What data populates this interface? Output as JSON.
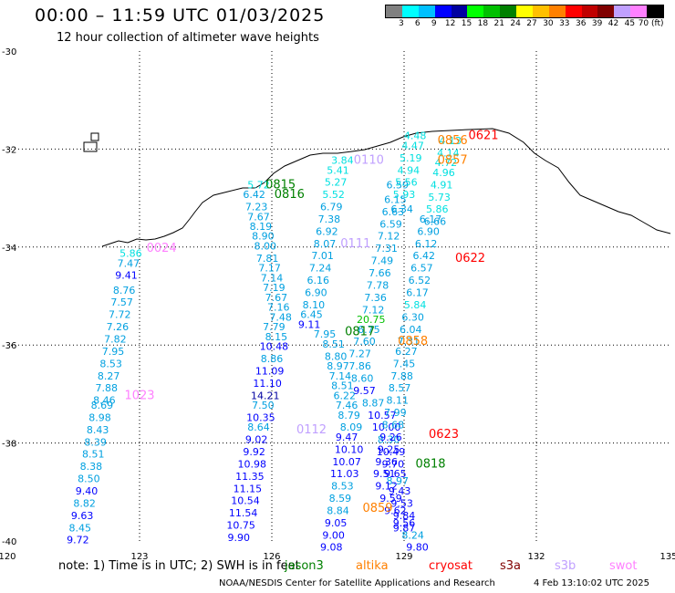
{
  "header": {
    "title": "00:00 – 11:59 UTC 01/03/2025",
    "subtitle": "12 hour collection of altimeter wave heights"
  },
  "legend": {
    "colors": [
      "#808080",
      "#00ffff",
      "#00c0ff",
      "#0000ff",
      "#0000a0",
      "#00ff00",
      "#00c000",
      "#008000",
      "#ffff00",
      "#ffc000",
      "#ff8000",
      "#ff0000",
      "#c00000",
      "#800000",
      "#c0a0ff",
      "#ff80ff",
      "#000000"
    ],
    "labels": [
      "3",
      "6",
      "9",
      "12",
      "15",
      "18",
      "21",
      "24",
      "27",
      "30",
      "33",
      "36",
      "39",
      "42",
      "45",
      "70 (ft)"
    ]
  },
  "axes": {
    "lat_labels": [
      "-30",
      "-32",
      "-34",
      "-36",
      "-38",
      "-40"
    ],
    "lon_labels": [
      "120",
      "123",
      "126",
      "129",
      "132",
      "135"
    ],
    "lats": [
      -30,
      -32,
      -34,
      -36,
      -38,
      -40
    ],
    "lons": [
      120,
      123,
      126,
      129,
      132,
      135
    ],
    "xlim": [
      120,
      135
    ],
    "ylim": [
      -40,
      -30
    ]
  },
  "passes": [
    {
      "label": "1023",
      "color": "#ff80ff",
      "lon": 123.0,
      "lat": -37.1
    },
    {
      "label": "0024",
      "color": "#ff80ff",
      "lon": 123.5,
      "lat": -34.1
    },
    {
      "label": "0815",
      "color": "#008000",
      "lon": 126.2,
      "lat": -32.8
    },
    {
      "label": "0816",
      "color": "#008000",
      "lon": 126.4,
      "lat": -33.0
    },
    {
      "label": "0110",
      "color": "#c0a0ff",
      "lon": 128.2,
      "lat": -32.3
    },
    {
      "label": "0111",
      "color": "#c0a0ff",
      "lon": 127.9,
      "lat": -34.0
    },
    {
      "label": "0112",
      "color": "#c0a0ff",
      "lon": 126.9,
      "lat": -37.8
    },
    {
      "label": "0817",
      "color": "#008000",
      "lon": 128.0,
      "lat": -35.8
    },
    {
      "label": "0858",
      "color": "#ff8000",
      "lon": 129.2,
      "lat": -36.0
    },
    {
      "label": "0859",
      "color": "#ff8000",
      "lon": 128.4,
      "lat": -39.4
    },
    {
      "label": "0818",
      "color": "#008000",
      "lon": 129.6,
      "lat": -38.5
    },
    {
      "label": "0856",
      "color": "#ff8000",
      "lon": 130.1,
      "lat": -31.9
    },
    {
      "label": "0857",
      "color": "#ff8000",
      "lon": 130.1,
      "lat": -32.3
    },
    {
      "label": "0621",
      "color": "#ff0000",
      "lon": 130.8,
      "lat": -31.8
    },
    {
      "label": "0622",
      "color": "#ff0000",
      "lon": 130.5,
      "lat": -34.3
    },
    {
      "label": "0623",
      "color": "#ff0000",
      "lon": 129.9,
      "lat": -37.9
    }
  ],
  "tracks": [
    {
      "name": "1023",
      "points": [
        {
          "lon": 122.8,
          "lat": -34.2,
          "v": "5.86"
        },
        {
          "lon": 122.75,
          "lat": -34.4,
          "v": "7.47"
        },
        {
          "lon": 122.7,
          "lat": -34.65,
          "v": "9.41"
        },
        {
          "lon": 122.65,
          "lat": -34.95,
          "v": "8.76"
        },
        {
          "lon": 122.6,
          "lat": -35.2,
          "v": "7.57"
        },
        {
          "lon": 122.55,
          "lat": -35.45,
          "v": "7.72"
        },
        {
          "lon": 122.5,
          "lat": -35.7,
          "v": "7.26"
        },
        {
          "lon": 122.45,
          "lat": -35.95,
          "v": "7.82"
        },
        {
          "lon": 122.4,
          "lat": -36.2,
          "v": "7.95"
        },
        {
          "lon": 122.35,
          "lat": -36.45,
          "v": "8.53"
        },
        {
          "lon": 122.3,
          "lat": -36.7,
          "v": "8.27"
        },
        {
          "lon": 122.25,
          "lat": -36.95,
          "v": "7.88"
        },
        {
          "lon": 122.2,
          "lat": -37.2,
          "v": "8.46"
        },
        {
          "lon": 122.15,
          "lat": -37.3,
          "v": "8.69"
        },
        {
          "lon": 122.1,
          "lat": -37.55,
          "v": "8.98"
        },
        {
          "lon": 122.05,
          "lat": -37.8,
          "v": "8.43"
        },
        {
          "lon": 122.0,
          "lat": -38.05,
          "v": "8.39"
        },
        {
          "lon": 121.95,
          "lat": -38.3,
          "v": "8.51"
        },
        {
          "lon": 121.9,
          "lat": -38.55,
          "v": "8.38"
        },
        {
          "lon": 121.85,
          "lat": -38.8,
          "v": "8.50"
        },
        {
          "lon": 121.8,
          "lat": -39.05,
          "v": "9.40"
        },
        {
          "lon": 121.75,
          "lat": -39.3,
          "v": "8.82"
        },
        {
          "lon": 121.7,
          "lat": -39.55,
          "v": "9.63"
        },
        {
          "lon": 121.65,
          "lat": -39.8,
          "v": "8.45"
        },
        {
          "lon": 121.6,
          "lat": -40.05,
          "v": "9.72"
        }
      ]
    },
    {
      "name": "0816",
      "points": [
        {
          "lon": 125.7,
          "lat": -32.8,
          "v": "5.72"
        },
        {
          "lon": 125.6,
          "lat": -33.0,
          "v": "6.42"
        },
        {
          "lon": 125.65,
          "lat": -33.25,
          "v": "7.23"
        },
        {
          "lon": 125.7,
          "lat": -33.45,
          "v": "7.67"
        },
        {
          "lon": 125.75,
          "lat": -33.65,
          "v": "8.19"
        },
        {
          "lon": 125.8,
          "lat": -33.85,
          "v": "8.90"
        },
        {
          "lon": 125.85,
          "lat": -34.05,
          "v": "8.00"
        },
        {
          "lon": 125.9,
          "lat": -34.3,
          "v": "7.81"
        },
        {
          "lon": 125.95,
          "lat": -34.5,
          "v": "7.17"
        },
        {
          "lon": 126.0,
          "lat": -34.7,
          "v": "7.14"
        },
        {
          "lon": 126.05,
          "lat": -34.9,
          "v": "7.19"
        },
        {
          "lon": 126.1,
          "lat": -35.1,
          "v": "7.67"
        },
        {
          "lon": 126.15,
          "lat": -35.3,
          "v": "7.16"
        },
        {
          "lon": 126.2,
          "lat": -35.5,
          "v": "7.48"
        },
        {
          "lon": 126.05,
          "lat": -35.7,
          "v": "7.79"
        },
        {
          "lon": 126.1,
          "lat": -35.9,
          "v": "8.15"
        },
        {
          "lon": 126.05,
          "lat": -36.1,
          "v": "10.48"
        },
        {
          "lon": 126.0,
          "lat": -36.35,
          "v": "8.86"
        },
        {
          "lon": 125.95,
          "lat": -36.6,
          "v": "11.09"
        },
        {
          "lon": 125.9,
          "lat": -36.85,
          "v": "11.10"
        },
        {
          "lon": 125.85,
          "lat": -37.1,
          "v": "14.21"
        },
        {
          "lon": 125.8,
          "lat": -37.3,
          "v": "7.50"
        },
        {
          "lon": 125.75,
          "lat": -37.55,
          "v": "10.35"
        },
        {
          "lon": 125.7,
          "lat": -37.75,
          "v": "8.64"
        },
        {
          "lon": 125.65,
          "lat": -38.0,
          "v": "9.02"
        },
        {
          "lon": 125.6,
          "lat": -38.25,
          "v": "9.92"
        },
        {
          "lon": 125.55,
          "lat": -38.5,
          "v": "10.98"
        },
        {
          "lon": 125.5,
          "lat": -38.75,
          "v": "11.35"
        },
        {
          "lon": 125.45,
          "lat": -39.0,
          "v": "11.15"
        },
        {
          "lon": 125.4,
          "lat": -39.25,
          "v": "10.54"
        },
        {
          "lon": 125.35,
          "lat": -39.5,
          "v": "11.54"
        },
        {
          "lon": 125.3,
          "lat": -39.75,
          "v": "10.75"
        },
        {
          "lon": 125.25,
          "lat": -40.0,
          "v": "9.90"
        }
      ]
    },
    {
      "name": "0110",
      "points": [
        {
          "lon": 127.6,
          "lat": -32.3,
          "v": "3.84"
        },
        {
          "lon": 127.5,
          "lat": -32.5,
          "v": "5.41"
        },
        {
          "lon": 127.45,
          "lat": -32.75,
          "v": "5.27"
        },
        {
          "lon": 127.4,
          "lat": -33.0,
          "v": "5.52"
        },
        {
          "lon": 127.35,
          "lat": -33.25,
          "v": "6.79"
        },
        {
          "lon": 127.3,
          "lat": -33.5,
          "v": "7.38"
        },
        {
          "lon": 127.25,
          "lat": -33.75,
          "v": "6.92"
        },
        {
          "lon": 127.2,
          "lat": -34.0,
          "v": "8.07"
        },
        {
          "lon": 127.15,
          "lat": -34.25,
          "v": "7.01"
        },
        {
          "lon": 127.1,
          "lat": -34.5,
          "v": "7.24"
        },
        {
          "lon": 127.05,
          "lat": -34.75,
          "v": "6.16"
        },
        {
          "lon": 127.0,
          "lat": -35.0,
          "v": "6.90"
        },
        {
          "lon": 126.95,
          "lat": -35.25,
          "v": "8.10"
        },
        {
          "lon": 126.9,
          "lat": -35.45,
          "v": "6.45"
        },
        {
          "lon": 126.85,
          "lat": -35.65,
          "v": "9.11"
        },
        {
          "lon": 127.2,
          "lat": -35.85,
          "v": "7.95"
        },
        {
          "lon": 127.4,
          "lat": -36.05,
          "v": "8.51"
        },
        {
          "lon": 127.45,
          "lat": -36.3,
          "v": "8.80"
        },
        {
          "lon": 127.5,
          "lat": -36.5,
          "v": "8.97"
        },
        {
          "lon": 127.55,
          "lat": -36.7,
          "v": "7.14"
        },
        {
          "lon": 127.6,
          "lat": -36.9,
          "v": "8.51"
        },
        {
          "lon": 127.65,
          "lat": -37.1,
          "v": "6.22"
        },
        {
          "lon": 127.7,
          "lat": -37.3,
          "v": "7.46"
        },
        {
          "lon": 127.75,
          "lat": -37.5,
          "v": "8.79"
        },
        {
          "lon": 127.8,
          "lat": -37.75,
          "v": "8.09"
        },
        {
          "lon": 127.7,
          "lat": -37.95,
          "v": "9.47"
        },
        {
          "lon": 127.75,
          "lat": -38.2,
          "v": "10.10"
        },
        {
          "lon": 127.7,
          "lat": -38.45,
          "v": "10.07"
        },
        {
          "lon": 127.65,
          "lat": -38.7,
          "v": "11.03"
        },
        {
          "lon": 127.6,
          "lat": -38.95,
          "v": "8.53"
        },
        {
          "lon": 127.55,
          "lat": -39.2,
          "v": "8.59"
        },
        {
          "lon": 127.5,
          "lat": -39.45,
          "v": "8.84"
        },
        {
          "lon": 127.45,
          "lat": -39.7,
          "v": "9.05"
        },
        {
          "lon": 127.4,
          "lat": -39.95,
          "v": "9.00"
        },
        {
          "lon": 127.35,
          "lat": -40.2,
          "v": "9.08"
        }
      ]
    },
    {
      "name": "0858",
      "points": [
        {
          "lon": 128.85,
          "lat": -32.8,
          "v": "6.59"
        },
        {
          "lon": 128.8,
          "lat": -33.1,
          "v": "6.15"
        },
        {
          "lon": 128.75,
          "lat": -33.35,
          "v": "6.63"
        },
        {
          "lon": 128.7,
          "lat": -33.6,
          "v": "6.59"
        },
        {
          "lon": 128.65,
          "lat": -33.85,
          "v": "7.12"
        },
        {
          "lon": 128.6,
          "lat": -34.1,
          "v": "7.31"
        },
        {
          "lon": 128.5,
          "lat": -34.35,
          "v": "7.49"
        },
        {
          "lon": 128.45,
          "lat": -34.6,
          "v": "7.66"
        },
        {
          "lon": 128.4,
          "lat": -34.85,
          "v": "7.78"
        },
        {
          "lon": 128.35,
          "lat": -35.1,
          "v": "7.36"
        },
        {
          "lon": 128.3,
          "lat": -35.35,
          "v": "7.12"
        },
        {
          "lon": 128.25,
          "lat": -35.55,
          "v": "20.75"
        },
        {
          "lon": 128.2,
          "lat": -35.75,
          "v": "6.75"
        },
        {
          "lon": 128.1,
          "lat": -36.0,
          "v": "7.60"
        },
        {
          "lon": 128.0,
          "lat": -36.25,
          "v": "7.27"
        },
        {
          "lon": 128.0,
          "lat": -36.5,
          "v": "7.86"
        },
        {
          "lon": 128.05,
          "lat": -36.75,
          "v": "8.60"
        },
        {
          "lon": 128.1,
          "lat": -37.0,
          "v": "9.57"
        },
        {
          "lon": 128.3,
          "lat": -37.25,
          "v": "8.87"
        },
        {
          "lon": 128.5,
          "lat": -37.5,
          "v": "10.57"
        },
        {
          "lon": 128.6,
          "lat": -37.75,
          "v": "10.00"
        },
        {
          "lon": 128.65,
          "lat": -38.0,
          "v": "8.30"
        },
        {
          "lon": 128.7,
          "lat": -38.25,
          "v": "10.49"
        },
        {
          "lon": 128.75,
          "lat": -38.5,
          "v": "9.70"
        },
        {
          "lon": 128.8,
          "lat": -38.7,
          "v": "9.65"
        },
        {
          "lon": 128.85,
          "lat": -38.85,
          "v": "8.97"
        },
        {
          "lon": 128.9,
          "lat": -39.05,
          "v": "9.43"
        },
        {
          "lon": 128.95,
          "lat": -39.3,
          "v": "9.53"
        },
        {
          "lon": 129.0,
          "lat": -39.55,
          "v": "9.84"
        },
        {
          "lon": 129.0,
          "lat": -39.8,
          "v": "9.87"
        }
      ]
    },
    {
      "name": "0857",
      "points": [
        {
          "lon": 129.25,
          "lat": -31.8,
          "v": "4.48"
        },
        {
          "lon": 129.2,
          "lat": -32.0,
          "v": "4.47"
        },
        {
          "lon": 129.15,
          "lat": -32.25,
          "v": "5.19"
        },
        {
          "lon": 129.1,
          "lat": -32.5,
          "v": "4.94"
        },
        {
          "lon": 129.05,
          "lat": -32.75,
          "v": "5.56"
        },
        {
          "lon": 129.0,
          "lat": -33.0,
          "v": "5.93"
        },
        {
          "lon": 128.95,
          "lat": -33.3,
          "v": "6.34"
        },
        {
          "lon": 129.6,
          "lat": -33.5,
          "v": "6.17"
        },
        {
          "lon": 129.55,
          "lat": -33.75,
          "v": "6.90"
        },
        {
          "lon": 129.5,
          "lat": -34.0,
          "v": "6.12"
        },
        {
          "lon": 129.45,
          "lat": -34.25,
          "v": "6.42"
        },
        {
          "lon": 129.4,
          "lat": -34.5,
          "v": "6.57"
        },
        {
          "lon": 129.35,
          "lat": -34.75,
          "v": "6.52"
        },
        {
          "lon": 129.3,
          "lat": -35.0,
          "v": "6.17"
        },
        {
          "lon": 129.25,
          "lat": -35.25,
          "v": "5.84"
        },
        {
          "lon": 129.2,
          "lat": -35.5,
          "v": "6.30"
        },
        {
          "lon": 129.15,
          "lat": -35.75,
          "v": "6.04"
        },
        {
          "lon": 129.1,
          "lat": -36.0,
          "v": "7.31"
        },
        {
          "lon": 129.05,
          "lat": -36.2,
          "v": "6.27"
        },
        {
          "lon": 129.0,
          "lat": -36.45,
          "v": "7.45"
        },
        {
          "lon": 128.95,
          "lat": -36.7,
          "v": "7.88"
        },
        {
          "lon": 128.9,
          "lat": -36.95,
          "v": "8.57"
        },
        {
          "lon": 128.85,
          "lat": -37.2,
          "v": "8.11"
        },
        {
          "lon": 128.8,
          "lat": -37.45,
          "v": "7.99"
        },
        {
          "lon": 128.75,
          "lat": -37.7,
          "v": "8.68"
        },
        {
          "lon": 128.7,
          "lat": -37.95,
          "v": "9.26"
        },
        {
          "lon": 128.65,
          "lat": -38.2,
          "v": "9.25"
        },
        {
          "lon": 128.6,
          "lat": -38.45,
          "v": "9.36"
        },
        {
          "lon": 128.55,
          "lat": -38.7,
          "v": "9.51"
        },
        {
          "lon": 128.6,
          "lat": -38.95,
          "v": "9.12"
        },
        {
          "lon": 128.7,
          "lat": -39.2,
          "v": "9.59"
        },
        {
          "lon": 128.8,
          "lat": -39.45,
          "v": "9.62"
        },
        {
          "lon": 129.0,
          "lat": -39.7,
          "v": "9.56"
        },
        {
          "lon": 129.2,
          "lat": -39.95,
          "v": "8.24"
        },
        {
          "lon": 129.3,
          "lat": -40.2,
          "v": "9.80"
        }
      ]
    },
    {
      "name": "0621",
      "points": [
        {
          "lon": 130.05,
          "lat": -31.9,
          "v": "4.13"
        },
        {
          "lon": 130.0,
          "lat": -32.15,
          "v": "4.14"
        },
        {
          "lon": 129.95,
          "lat": -32.35,
          "v": "4.72"
        },
        {
          "lon": 129.9,
          "lat": -32.55,
          "v": "4.96"
        },
        {
          "lon": 129.85,
          "lat": -32.8,
          "v": "4.91"
        },
        {
          "lon": 129.8,
          "lat": -33.05,
          "v": "5.73"
        },
        {
          "lon": 129.75,
          "lat": -33.3,
          "v": "5.86"
        },
        {
          "lon": 129.7,
          "lat": -33.55,
          "v": "6.66"
        }
      ]
    }
  ],
  "footer": {
    "note": "note:  1) Time is in UTC;  2) SWH is in feet",
    "satellites": [
      {
        "name": "jason3",
        "color": "#008000"
      },
      {
        "name": "altika",
        "color": "#ff8000"
      },
      {
        "name": "cryosat",
        "color": "#ff0000"
      },
      {
        "name": "s3a",
        "color": "#800000"
      },
      {
        "name": "s3b",
        "color": "#c0a0ff"
      },
      {
        "name": "swot",
        "color": "#ff80ff"
      }
    ],
    "credit": "NOAA/NESDIS Center for Satellite Applications and Research",
    "date": "4 Feb 13:10:02 UTC 2025"
  }
}
